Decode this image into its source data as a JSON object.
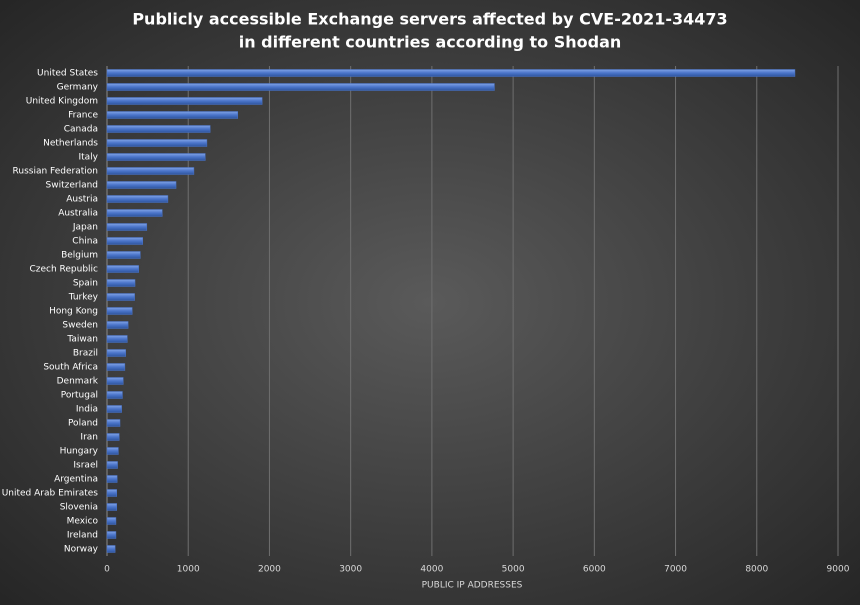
{
  "chart_data": {
    "type": "hbar",
    "title": [
      "Publicly accessible Exchange servers affected by CVE-2021-34473",
      "in different countries according to Shodan"
    ],
    "x_label": "PUBLIC IP ADDRESSES",
    "categories": [
      "United States",
      "Germany",
      "United Kingdom",
      "France",
      "Canada",
      "Netherlands",
      "Italy",
      "Russian Federation",
      "Switzerland",
      "Austria",
      "Australia",
      "Japan",
      "China",
      "Belgium",
      "Czech Republic",
      "Spain",
      "Turkey",
      "Hong Kong",
      "Sweden",
      "Taiwan",
      "Brazil",
      "South Africa",
      "Denmark",
      "Portugal",
      "India",
      "Poland",
      "Iran",
      "Hungary",
      "Israel",
      "Argentina",
      "United Arab Emirates",
      "Slovenia",
      "Mexico",
      "Ireland",
      "Norway"
    ],
    "values": [
      8470,
      4770,
      1910,
      1610,
      1270,
      1230,
      1210,
      1070,
      850,
      750,
      680,
      490,
      440,
      410,
      390,
      345,
      340,
      310,
      260,
      250,
      230,
      220,
      200,
      190,
      180,
      160,
      150,
      140,
      130,
      125,
      120,
      120,
      110,
      110,
      100
    ],
    "color": "#4a74c9",
    "xlim": [
      0,
      9000
    ],
    "xticks": [
      0,
      1000,
      2000,
      3000,
      4000,
      5000,
      6000,
      7000,
      8000,
      9000
    ],
    "grid": true
  }
}
